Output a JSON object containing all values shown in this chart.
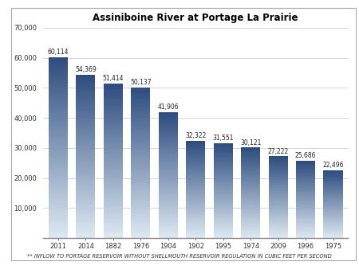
{
  "title": "Assiniboine River at Portage La Prairie",
  "footnote": "** INFLOW TO PORTAGE RESERVOIR WITHOUT SHELLMOUTH RESERVOIR REGULATION IN CUBIC FEET PER SECOND",
  "categories": [
    "2011",
    "2014",
    "1882",
    "1976",
    "1904",
    "1902",
    "1995",
    "1974",
    "2009",
    "1996",
    "1975"
  ],
  "values": [
    60114,
    54369,
    51414,
    50137,
    41906,
    32322,
    31551,
    30121,
    27222,
    25686,
    22496
  ],
  "ylim": [
    0,
    70000
  ],
  "yticks": [
    10000,
    20000,
    30000,
    40000,
    50000,
    60000,
    70000
  ],
  "ytick_labels": [
    "10,000",
    "20,000",
    "30,000",
    "40,000",
    "50,000",
    "60,000",
    "70,000"
  ],
  "bar_color_dark": "#2e4d7f",
  "bar_color_light": "#dce8f2",
  "background_color": "#ffffff",
  "grid_color": "#d0d0d0",
  "title_fontsize": 8.5,
  "label_fontsize": 5.5,
  "tick_fontsize": 6,
  "footnote_fontsize": 4.8,
  "bar_width": 0.7
}
